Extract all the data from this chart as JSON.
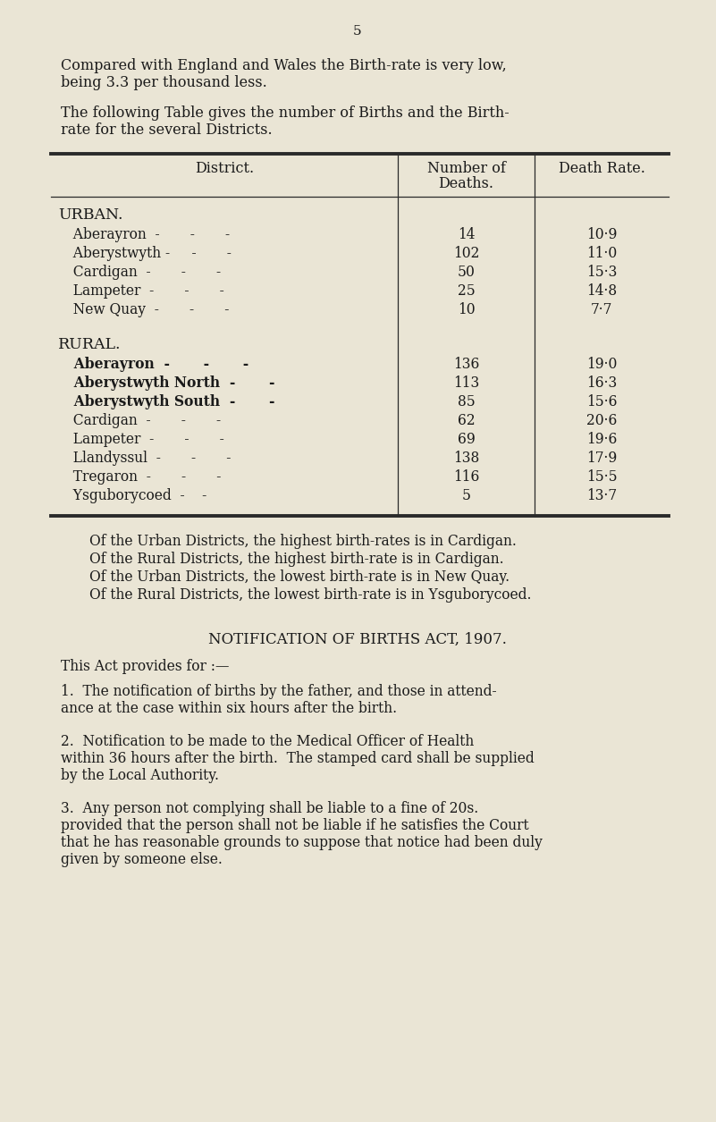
{
  "bg_color": "#EAE5D5",
  "text_color": "#1a1a1a",
  "page_number": "5",
  "para1_line1": "Compared with England and Wales the Birth-rate is very low,",
  "para1_line2": "being 3.3 per thousand less.",
  "para2_line1": "The following Table gives the number of Births and the Birth-",
  "para2_line2": "rate for the several Districts.",
  "col_header_district": "District.",
  "col_header_deaths": "Number of\nDeaths.",
  "col_header_rate": "Death Rate.",
  "urban_label": "URBAN.",
  "urban_rows": [
    [
      "Aberayron",
      "14",
      "10·9"
    ],
    [
      "Aberystwyth -",
      "102",
      "11·0"
    ],
    [
      "Cardigan",
      "50",
      "15·3"
    ],
    [
      "Lampeter",
      "25",
      "14·8"
    ],
    [
      "New Quay",
      "10",
      "7·7"
    ]
  ],
  "rural_label": "RURAL.",
  "rural_rows": [
    [
      "Aberayron",
      "136",
      "19·0",
      true
    ],
    [
      "Aberystwyth North",
      "113",
      "16·3",
      true
    ],
    [
      "Aberystwyth South",
      "85",
      "15·6",
      true
    ],
    [
      "Cardigan",
      "62",
      "20·6",
      false
    ],
    [
      "Lampeter",
      "69",
      "19·6",
      false
    ],
    [
      "Llandyssul",
      "138",
      "17·9",
      false
    ],
    [
      "Tregaron",
      "116",
      "15·5",
      false
    ],
    [
      "Ysguborycoed",
      "5",
      "13·7",
      false
    ]
  ],
  "summary_lines": [
    "Of the Urban Districts, the highest birth-rates is in Cardigan.",
    "Of the Rural Districts, the highest birth-rate is in Cardigan.",
    "Of the Urban Districts, the lowest birth-rate is in New Quay.",
    "Of the Rural Districts, the lowest birth-rate is in Ysguborycoed."
  ],
  "notif_title": "NOTIFICATION OF BIRTHS ACT, 1907.",
  "notif_intro": "This Act provides for :—",
  "notif_items": [
    [
      "1.  The notification of births by the father, and those in attend-",
      "ance at the case within six hours after the birth."
    ],
    [
      "2.  Notification to be made to the Medical Officer of Health",
      "within 36 hours after the birth.  The stamped card shall be supplied",
      "by the Local Authority."
    ],
    [
      "3.  Any person not complying shall be liable to a fine of 20s.",
      "provided that the person shall not be liable if he satisfies the Court",
      "that he has reasonable grounds to suppose that notice had been duly",
      "given by someone else."
    ]
  ]
}
